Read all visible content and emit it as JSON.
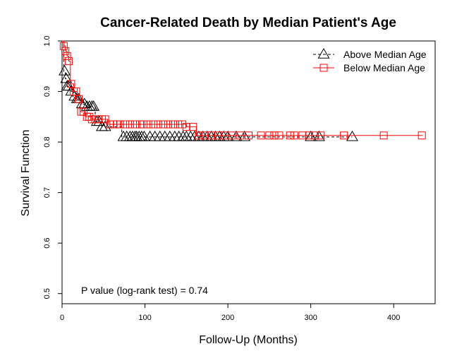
{
  "chart_data": {
    "type": "line",
    "title": "Cancer-Related Death by Median Patient's Age",
    "xlabel": "Follow-Up (Months)",
    "ylabel": "Survival Function",
    "xlim": [
      0,
      450
    ],
    "ylim": [
      0.48,
      1.0
    ],
    "xticks": [
      0,
      100,
      200,
      300,
      400
    ],
    "yticks": [
      0.5,
      0.6,
      0.7,
      0.8,
      0.9,
      1.0
    ],
    "xtick_labels": [
      "0",
      "100",
      "200",
      "300",
      "400"
    ],
    "ytick_labels": [
      "0.5",
      "0.6",
      "0.7",
      "0.8",
      "0.9",
      "1.0"
    ],
    "grid": false,
    "legend_position": "top-right",
    "annotation": "P value (log-rank test) =   0.74",
    "series": [
      {
        "name": "Above Median Age",
        "color": "#000000",
        "marker": "triangle",
        "line_style": "dashed",
        "steps": [
          [
            0,
            1.0
          ],
          [
            2,
            0.94
          ],
          [
            4,
            0.925
          ],
          [
            6,
            0.91
          ],
          [
            9,
            0.9
          ],
          [
            13,
            0.89
          ],
          [
            17,
            0.885
          ],
          [
            24,
            0.875
          ],
          [
            30,
            0.87
          ],
          [
            40,
            0.84
          ],
          [
            48,
            0.83
          ],
          [
            72,
            0.81
          ],
          [
            350,
            0.81
          ]
        ],
        "censored_x": [
          3,
          5,
          6,
          8,
          11,
          15,
          18,
          20,
          24,
          27,
          30,
          33,
          36,
          38,
          42,
          45,
          48,
          52,
          74,
          78,
          82,
          85,
          88,
          90,
          93,
          96,
          99,
          106,
          112,
          118,
          124,
          130,
          136,
          141,
          146,
          150,
          155,
          160,
          165,
          170,
          175,
          180,
          185,
          190,
          195,
          200,
          210,
          220,
          300,
          310,
          350
        ]
      },
      {
        "name": "Below Median Age",
        "color": "#ff0000",
        "marker": "square",
        "line_style": "solid",
        "steps": [
          [
            0,
            1.0
          ],
          [
            2,
            0.99
          ],
          [
            4,
            0.98
          ],
          [
            6,
            0.97
          ],
          [
            8,
            0.96
          ],
          [
            10,
            0.915
          ],
          [
            14,
            0.9
          ],
          [
            18,
            0.885
          ],
          [
            22,
            0.86
          ],
          [
            28,
            0.85
          ],
          [
            36,
            0.845
          ],
          [
            55,
            0.835
          ],
          [
            150,
            0.83
          ],
          [
            162,
            0.813
          ],
          [
            435,
            0.813
          ]
        ],
        "censored_x": [
          2,
          4,
          6,
          8,
          11,
          14,
          17,
          20,
          23,
          26,
          30,
          33,
          36,
          40,
          44,
          48,
          52,
          58,
          62,
          66,
          70,
          76,
          82,
          88,
          94,
          98,
          104,
          110,
          116,
          122,
          128,
          134,
          140,
          145,
          150,
          158,
          165,
          172,
          180,
          188,
          196,
          205,
          215,
          225,
          240,
          250,
          256,
          262,
          275,
          280,
          290,
          298,
          305,
          312,
          340,
          388,
          434
        ]
      }
    ]
  }
}
